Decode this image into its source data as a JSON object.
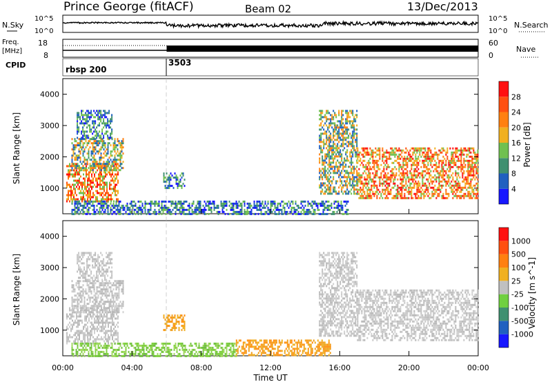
{
  "header": {
    "title": "Prince George (fitACF)",
    "beam": "Beam 02",
    "date": "13/Dec/2013"
  },
  "noise_panel": {
    "left_label": "N.Sky",
    "right_label": "N.Search",
    "left_ticks": [
      "10^5",
      "10^0"
    ],
    "right_ticks": [
      "10^5",
      "10^0"
    ]
  },
  "freq_panel": {
    "left_label_line1": "Freq.",
    "left_label_line2": "[MHz]",
    "right_label": "Nave",
    "left_ticks": [
      "18",
      "8"
    ],
    "right_ticks": [
      "60",
      "0"
    ]
  },
  "cpid_panel": {
    "label": "CPID",
    "entries": [
      {
        "name": "rbsp 200",
        "start_hour": 0
      },
      {
        "name": "3503",
        "start_hour": 6
      }
    ]
  },
  "x_axis": {
    "label": "Time UT",
    "ticks": [
      "00:00",
      "04:00",
      "08:00",
      "12:00",
      "16:00",
      "20:00",
      "00:00"
    ],
    "range_hours": [
      0,
      24
    ]
  },
  "chart_data": [
    {
      "type": "heatmap",
      "title": "",
      "ylabel": "Slant Range [km]",
      "xlabel": "",
      "xlim": [
        0,
        24
      ],
      "ylim": [
        180,
        4500
      ],
      "y_ticks": [
        "1000",
        "2000",
        "3000",
        "4000"
      ],
      "colorbar_label": "Power [dB]",
      "colorbar_ticks": [
        "4",
        "8",
        "12",
        "16",
        "20",
        "24",
        "28"
      ],
      "colorbar_colors": [
        "#1818ff",
        "#2060c0",
        "#409070",
        "#70c050",
        "#f0b020",
        "#ff8010",
        "#ff5010",
        "#ff1010"
      ],
      "regions": [
        {
          "t": [
            0.2,
            3.2
          ],
          "r": [
            600,
            1800
          ],
          "level": "high"
        },
        {
          "t": [
            0.5,
            3.5
          ],
          "r": [
            1600,
            2600
          ],
          "level": "mid"
        },
        {
          "t": [
            0.8,
            2.8
          ],
          "r": [
            2600,
            3500
          ],
          "level": "low"
        },
        {
          "t": [
            5.8,
            7.0
          ],
          "r": [
            1000,
            1500
          ],
          "level": "low"
        },
        {
          "t": [
            0.5,
            16.5
          ],
          "r": [
            180,
            600
          ],
          "level": "low"
        },
        {
          "t": [
            14.8,
            17.0
          ],
          "r": [
            800,
            3500
          ],
          "level": "mid"
        },
        {
          "t": [
            17.0,
            24.0
          ],
          "r": [
            700,
            2300
          ],
          "level": "high"
        }
      ]
    },
    {
      "type": "heatmap",
      "title": "",
      "ylabel": "Slant Range [km]",
      "xlabel": "Time UT",
      "xlim": [
        0,
        24
      ],
      "ylim": [
        180,
        4500
      ],
      "y_ticks": [
        "1000",
        "2000",
        "3000",
        "4000"
      ],
      "colorbar_label": "Velocity [m s^-1]",
      "colorbar_ticks": [
        "1000",
        "500",
        "100",
        "25",
        "-25",
        "-100",
        "-500",
        "-1000"
      ],
      "colorbar_colors": [
        "#1818ff",
        "#2060c0",
        "#409070",
        "#70d040",
        "#c0c0c0",
        "#f0b020",
        "#ff8010",
        "#ff5010",
        "#ff1010"
      ],
      "regions": [
        {
          "t": [
            0.2,
            3.2
          ],
          "r": [
            600,
            1800
          ],
          "color": "gray"
        },
        {
          "t": [
            0.5,
            3.5
          ],
          "r": [
            1600,
            2600
          ],
          "color": "gray"
        },
        {
          "t": [
            0.8,
            2.8
          ],
          "r": [
            2600,
            3500
          ],
          "color": "gray"
        },
        {
          "t": [
            5.8,
            7.0
          ],
          "r": [
            1000,
            1500
          ],
          "color": "orange"
        },
        {
          "t": [
            0.5,
            10.0
          ],
          "r": [
            180,
            600
          ],
          "color": "green"
        },
        {
          "t": [
            10.0,
            15.5
          ],
          "r": [
            180,
            700
          ],
          "color": "orange"
        },
        {
          "t": [
            14.8,
            17.0
          ],
          "r": [
            800,
            3500
          ],
          "color": "gray"
        },
        {
          "t": [
            17.0,
            24.0
          ],
          "r": [
            700,
            2300
          ],
          "color": "gray"
        }
      ]
    }
  ]
}
